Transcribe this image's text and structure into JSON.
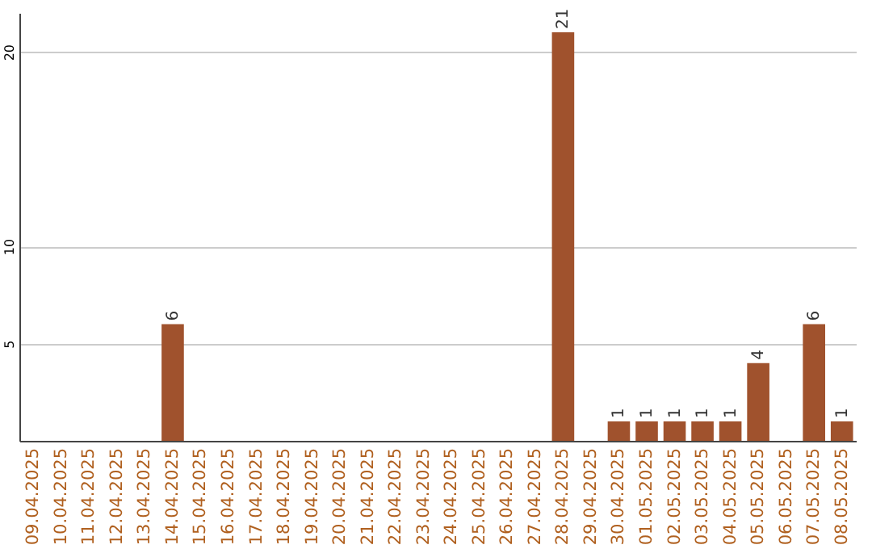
{
  "chart_data": {
    "type": "bar",
    "categories": [
      "09.04.2025",
      "10.04.2025",
      "11.04.2025",
      "12.04.2025",
      "13.04.2025",
      "14.04.2025",
      "15.04.2025",
      "16.04.2025",
      "17.04.2025",
      "18.04.2025",
      "19.04.2025",
      "20.04.2025",
      "21.04.2025",
      "22.04.2025",
      "23.04.2025",
      "24.04.2025",
      "25.04.2025",
      "26.04.2025",
      "27.04.2025",
      "28.04.2025",
      "29.04.2025",
      "30.04.2025",
      "01.05.2025",
      "02.05.2025",
      "03.05.2025",
      "04.05.2025",
      "05.05.2025",
      "06.05.2025",
      "07.05.2025",
      "08.05.2025"
    ],
    "values": [
      null,
      null,
      null,
      null,
      null,
      6,
      null,
      null,
      null,
      null,
      null,
      null,
      null,
      null,
      null,
      null,
      null,
      null,
      null,
      21,
      null,
      1,
      1,
      1,
      1,
      1,
      4,
      null,
      6,
      1
    ],
    "color": "#a0522d",
    "ylim": [
      0,
      22
    ],
    "yticks": [
      5,
      10,
      20
    ],
    "grid": "y",
    "data_labels": true
  }
}
